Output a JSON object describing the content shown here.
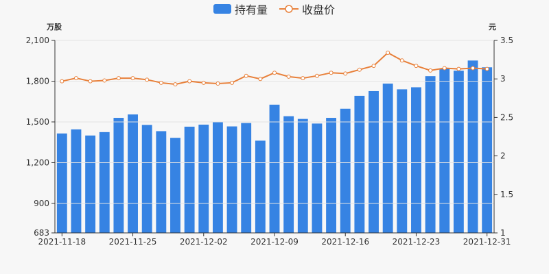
{
  "chart_data": {
    "type": "bar+line",
    "legend": {
      "position": "top-center",
      "items": [
        {
          "label": "持有量",
          "symbol": "bar"
        },
        {
          "label": "收盘价",
          "symbol": "line"
        }
      ]
    },
    "left_axis": {
      "unit": "万股",
      "ylim": [
        683,
        2100
      ],
      "ticks": [
        "2,100",
        "1,800",
        "1,500",
        "1,200",
        "900",
        "683"
      ],
      "tick_values": [
        2100,
        1800,
        1500,
        1200,
        900,
        683
      ]
    },
    "right_axis": {
      "unit": "元",
      "ylim": [
        1,
        3.5
      ],
      "ticks": [
        "3.5",
        "3",
        "2.5",
        "2",
        "1.5",
        "1"
      ],
      "tick_values": [
        3.5,
        3,
        2.5,
        2,
        1.5,
        1
      ]
    },
    "x_tick_labels": [
      {
        "index": 0,
        "label": "2021-11-18"
      },
      {
        "index": 5,
        "label": "2021-11-25"
      },
      {
        "index": 10,
        "label": "2021-12-02"
      },
      {
        "index": 15,
        "label": "2021-12-09"
      },
      {
        "index": 20,
        "label": "2021-12-16"
      },
      {
        "index": 25,
        "label": "2021-12-23"
      },
      {
        "index": 30,
        "label": "2021-12-31"
      }
    ],
    "category_count": 31,
    "series": [
      {
        "name": "持有量",
        "type": "bar",
        "axis": "left",
        "color": "#3683e3",
        "values": [
          1415,
          1445,
          1400,
          1425,
          1530,
          1555,
          1478,
          1432,
          1383,
          1465,
          1480,
          1500,
          1467,
          1492,
          1362,
          1627,
          1542,
          1522,
          1488,
          1530,
          1597,
          1692,
          1727,
          1782,
          1740,
          1755,
          1837,
          1893,
          1877,
          1952,
          1902
        ]
      },
      {
        "name": "收盘价",
        "type": "line",
        "axis": "right",
        "color": "#e8803a",
        "values": [
          2.97,
          3.01,
          2.97,
          2.98,
          3.01,
          3.01,
          2.99,
          2.95,
          2.93,
          2.97,
          2.95,
          2.94,
          2.95,
          3.04,
          3.0,
          3.08,
          3.03,
          3.01,
          3.04,
          3.08,
          3.07,
          3.12,
          3.17,
          3.34,
          3.24,
          3.17,
          3.11,
          3.14,
          3.13,
          3.14,
          3.13
        ]
      }
    ]
  }
}
